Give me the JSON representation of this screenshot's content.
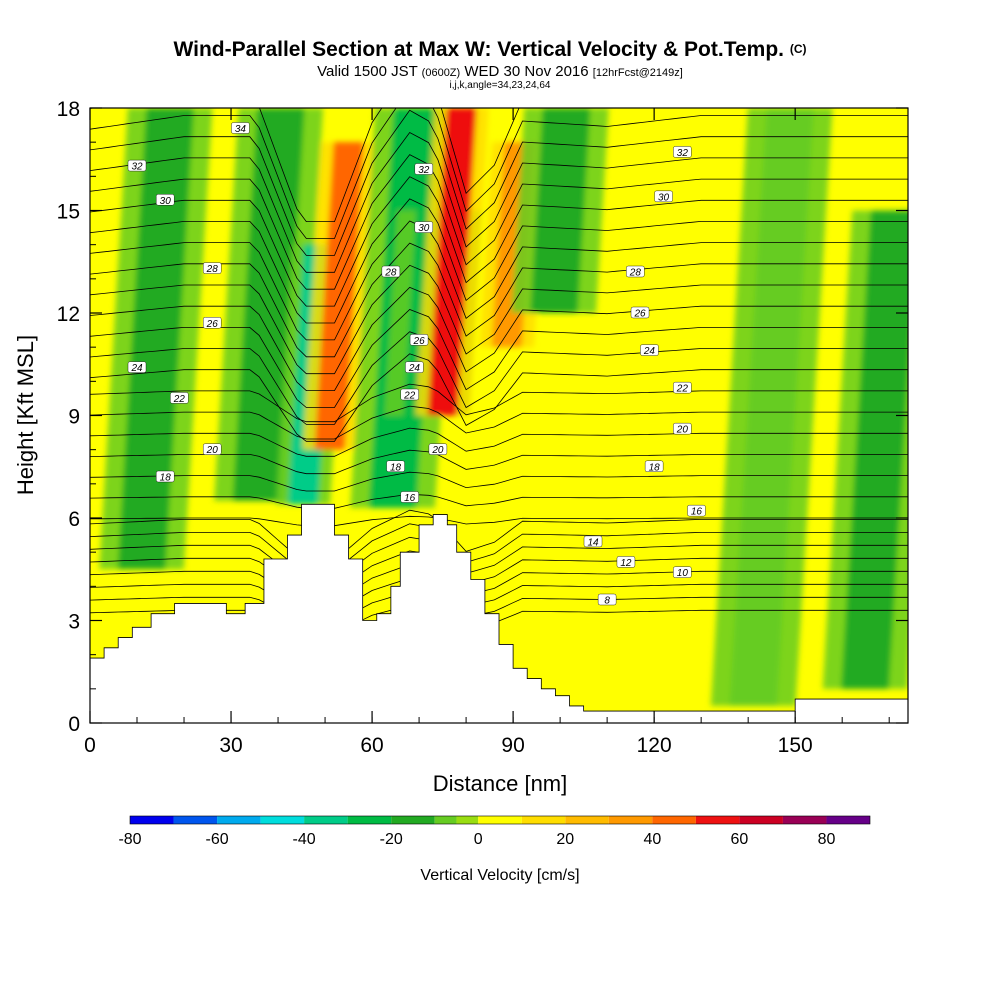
{
  "header": {
    "title_main": "Wind-Parallel Section at Max W: Vertical Velocity & Pot.Temp.",
    "title_mark": "(C)",
    "valid_pre": "Valid 1500 JST",
    "valid_z": "(0600Z)",
    "valid_date": "WED 30 Nov 2016",
    "valid_fcst": "[12hrFcst@2149z]",
    "index_line": "i,j,k,angle=34,23,24,64"
  },
  "colors": {
    "bins": [
      "#0000ee",
      "#0055ee",
      "#00aaee",
      "#00dddd",
      "#00cc88",
      "#00bb44",
      "#22aa22",
      "#66cc22",
      "#99dd11",
      "#ffff00",
      "#ffdd00",
      "#ffbb00",
      "#ff9900",
      "#ff6600",
      "#ee1111",
      "#cc0022",
      "#990055",
      "#660088"
    ],
    "bin_edges": [
      -80,
      -70,
      -60,
      -50,
      -40,
      -30,
      -20,
      -10,
      -5,
      0,
      10,
      20,
      30,
      40,
      50,
      60,
      70,
      80,
      90
    ]
  },
  "chart_data": {
    "type": "heatmap",
    "xlabel": "Distance [nm]",
    "ylabel": "Height [Kft MSL]",
    "xlim": [
      0,
      174
    ],
    "ylim": [
      0,
      18
    ],
    "xticks": [
      0,
      30,
      60,
      90,
      120,
      150
    ],
    "yticks": [
      0,
      3,
      6,
      9,
      12,
      15,
      18
    ],
    "colorbar": {
      "label": "Vertical Velocity [cm/s]",
      "ticks": [
        -80,
        -60,
        -40,
        -20,
        0,
        20,
        40,
        60,
        80
      ],
      "range": [
        -80,
        90
      ]
    },
    "terrain": [
      [
        0,
        1.9
      ],
      [
        3,
        2.2
      ],
      [
        6,
        2.5
      ],
      [
        9,
        2.8
      ],
      [
        13,
        3.2
      ],
      [
        18,
        3.5
      ],
      [
        23,
        3.5
      ],
      [
        29,
        3.2
      ],
      [
        33,
        3.5
      ],
      [
        37,
        4.8
      ],
      [
        42,
        5.5
      ],
      [
        45,
        6.4
      ],
      [
        50,
        6.4
      ],
      [
        52,
        5.5
      ],
      [
        55,
        4.8
      ],
      [
        58,
        3.0
      ],
      [
        61,
        3.2
      ],
      [
        64,
        4.0
      ],
      [
        66,
        5.0
      ],
      [
        70,
        5.8
      ],
      [
        73,
        6.1
      ],
      [
        76,
        5.8
      ],
      [
        78,
        5.0
      ],
      [
        81,
        4.2
      ],
      [
        84,
        3.2
      ],
      [
        87,
        2.3
      ],
      [
        90,
        1.6
      ],
      [
        93,
        1.3
      ],
      [
        96,
        1.0
      ],
      [
        99,
        0.8
      ],
      [
        102,
        0.5
      ],
      [
        105,
        0.35
      ],
      [
        110,
        0.35
      ],
      [
        125,
        0.35
      ],
      [
        145,
        0.35
      ],
      [
        150,
        0.7
      ],
      [
        165,
        0.7
      ],
      [
        174,
        0.7
      ]
    ],
    "w_cores": [
      {
        "x": 14,
        "w": -14,
        "top": 18,
        "bottom": 4.5
      },
      {
        "x": 38,
        "w": -18,
        "top": 18,
        "bottom": 6.5
      },
      {
        "x": 47,
        "w": -40,
        "top": 14,
        "bottom": 6.4
      },
      {
        "x": 53,
        "w": 40,
        "top": 17,
        "bottom": 8.0
      },
      {
        "x": 67,
        "w": -30,
        "top": 18,
        "bottom": 6.3
      },
      {
        "x": 73,
        "w": -25,
        "top": 15,
        "bottom": 9.0
      },
      {
        "x": 77,
        "w": 55,
        "top": 18,
        "bottom": 9.0
      },
      {
        "x": 90,
        "w": 38,
        "top": 17,
        "bottom": 11.0
      },
      {
        "x": 100,
        "w": -18,
        "top": 18,
        "bottom": 12.0
      },
      {
        "x": 145,
        "w": -8,
        "top": 18,
        "bottom": 0.5
      },
      {
        "x": 168,
        "w": -12,
        "top": 15,
        "bottom": 1.0
      }
    ],
    "theta_contours": [
      {
        "value": 8,
        "lx": 110,
        "ly": 3.6
      },
      {
        "value": 10,
        "lx": 126,
        "ly": 4.4
      },
      {
        "value": 12,
        "lx": 114,
        "ly": 4.7
      },
      {
        "value": 14,
        "lx": 107,
        "ly": 5.3
      },
      {
        "value": 16,
        "lx": 68,
        "ly": 6.6
      },
      {
        "value": 16,
        "lx": 129,
        "ly": 6.2
      },
      {
        "value": 18,
        "lx": 16,
        "ly": 7.2
      },
      {
        "value": 18,
        "lx": 65,
        "ly": 7.5
      },
      {
        "value": 18,
        "lx": 120,
        "ly": 7.5
      },
      {
        "value": 20,
        "lx": 26,
        "ly": 8.0
      },
      {
        "value": 20,
        "lx": 74,
        "ly": 8.0
      },
      {
        "value": 20,
        "lx": 126,
        "ly": 8.6
      },
      {
        "value": 22,
        "lx": 19,
        "ly": 9.5
      },
      {
        "value": 22,
        "lx": 68,
        "ly": 9.6
      },
      {
        "value": 22,
        "lx": 126,
        "ly": 9.8
      },
      {
        "value": 24,
        "lx": 10,
        "ly": 10.4
      },
      {
        "value": 24,
        "lx": 69,
        "ly": 10.4
      },
      {
        "value": 24,
        "lx": 119,
        "ly": 10.9
      },
      {
        "value": 26,
        "lx": 26,
        "ly": 11.7
      },
      {
        "value": 26,
        "lx": 70,
        "ly": 11.2
      },
      {
        "value": 26,
        "lx": 117,
        "ly": 12.0
      },
      {
        "value": 28,
        "lx": 26,
        "ly": 13.3
      },
      {
        "value": 28,
        "lx": 64,
        "ly": 13.2
      },
      {
        "value": 28,
        "lx": 116,
        "ly": 13.2
      },
      {
        "value": 30,
        "lx": 16,
        "ly": 15.3
      },
      {
        "value": 30,
        "lx": 71,
        "ly": 14.5
      },
      {
        "value": 30,
        "lx": 122,
        "ly": 15.4
      },
      {
        "value": 32,
        "lx": 10,
        "ly": 16.3
      },
      {
        "value": 32,
        "lx": 71,
        "ly": 16.2
      },
      {
        "value": 32,
        "lx": 126,
        "ly": 16.7
      },
      {
        "value": 34,
        "lx": 32,
        "ly": 17.4
      }
    ],
    "theta_shape": [
      [
        0,
        0.95
      ],
      [
        20,
        1.0
      ],
      [
        35,
        1.0
      ],
      [
        45,
        0.55
      ],
      [
        52,
        0.55
      ],
      [
        60,
        0.9
      ],
      [
        68,
        1.1
      ],
      [
        73,
        1.05
      ],
      [
        80,
        0.65
      ],
      [
        86,
        0.75
      ],
      [
        92,
        0.98
      ],
      [
        110,
        0.96
      ],
      [
        130,
        1.0
      ],
      [
        174,
        1.0
      ]
    ]
  }
}
